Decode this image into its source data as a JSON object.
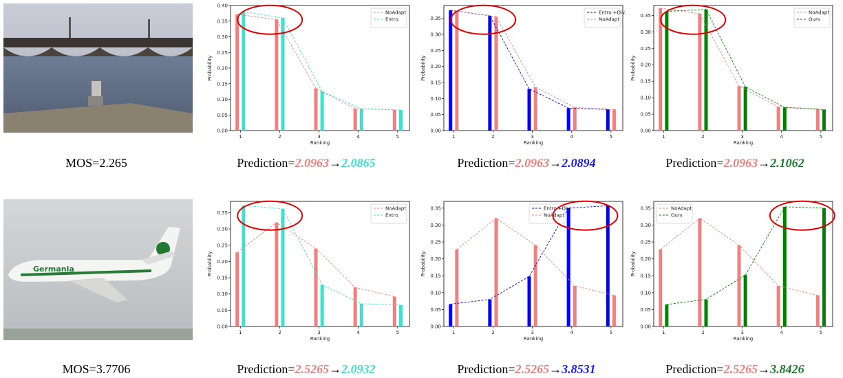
{
  "images": [
    {
      "caption": "MOS=2.265"
    },
    {
      "caption": "MOS=3.7706",
      "text": "Germania"
    }
  ],
  "chart_data": [
    {
      "type": "bar",
      "x_label": "Ranking",
      "y_label": "Probability",
      "x": [
        1,
        2,
        3,
        4,
        5
      ],
      "xlim": [
        0.75,
        5.3
      ],
      "xticks": [
        1,
        2,
        3,
        4,
        5
      ],
      "ylim": [
        0,
        0.4
      ],
      "yticks": [
        {
          "value": 0,
          "label": "0.00"
        },
        {
          "value": 0.05,
          "label": "0.05"
        },
        {
          "value": 0.1,
          "label": "0.10"
        },
        {
          "value": 0.15,
          "label": "0.15"
        },
        {
          "value": 0.2,
          "label": "0.20"
        },
        {
          "value": 0.25,
          "label": "0.25"
        },
        {
          "value": 0.3,
          "label": "0.30"
        },
        {
          "value": 0.35,
          "label": "0.35"
        },
        {
          "value": 0.4,
          "label": "0.40"
        }
      ],
      "legend_loc": "upper right",
      "series": [
        {
          "name": "NoAdapt",
          "color": "#f08080",
          "values": [
            0.372,
            0.355,
            0.135,
            0.07,
            0.066
          ]
        },
        {
          "name": "Entro.",
          "color": "#40e0d0",
          "values": [
            0.38,
            0.36,
            0.125,
            0.07,
            0.066
          ]
        }
      ],
      "caption": {
        "prefix": "Prediction=",
        "before": "2.0963",
        "arrow": "→",
        "after": "2.0865",
        "before_color": "#f08080",
        "after_color": "#40e0d0"
      }
    },
    {
      "type": "bar",
      "x_label": "Ranking",
      "y_label": "Probability",
      "x": [
        1,
        2,
        3,
        4,
        5
      ],
      "xlim": [
        0.75,
        5.3
      ],
      "xticks": [
        1,
        2,
        3,
        4,
        5
      ],
      "ylim": [
        0,
        0.39
      ],
      "yticks": [
        {
          "value": 0,
          "label": "0.00"
        },
        {
          "value": 0.05,
          "label": "0.05"
        },
        {
          "value": 0.1,
          "label": "0.10"
        },
        {
          "value": 0.15,
          "label": "0.15"
        },
        {
          "value": 0.2,
          "label": "0.20"
        },
        {
          "value": 0.25,
          "label": "0.25"
        },
        {
          "value": 0.3,
          "label": "0.30"
        },
        {
          "value": 0.35,
          "label": "0.35"
        }
      ],
      "legend_loc": "upper right",
      "series": [
        {
          "name": "Entro.+Div.",
          "color": "#0000ff",
          "values": [
            0.375,
            0.358,
            0.13,
            0.07,
            0.066
          ]
        },
        {
          "name": "NoAdapt",
          "color": "#f08080",
          "values": [
            0.372,
            0.355,
            0.135,
            0.072,
            0.066
          ]
        }
      ],
      "caption": {
        "prefix": "Prediction=",
        "before": "2.0963",
        "arrow": "→",
        "after": "2.0894",
        "before_color": "#f08080",
        "after_color": "#1a1aff"
      }
    },
    {
      "type": "bar",
      "x_label": "Ranking",
      "y_label": "Probability",
      "x": [
        1,
        2,
        3,
        4,
        5
      ],
      "xlim": [
        0.75,
        5.3
      ],
      "xticks": [
        1,
        2,
        3,
        4,
        5
      ],
      "ylim": [
        0,
        0.38
      ],
      "yticks": [
        {
          "value": 0,
          "label": "0.00"
        },
        {
          "value": 0.05,
          "label": "0.05"
        },
        {
          "value": 0.1,
          "label": "0.10"
        },
        {
          "value": 0.15,
          "label": "0.15"
        },
        {
          "value": 0.2,
          "label": "0.20"
        },
        {
          "value": 0.25,
          "label": "0.25"
        },
        {
          "value": 0.3,
          "label": "0.30"
        },
        {
          "value": 0.35,
          "label": "0.35"
        }
      ],
      "legend_loc": "upper right",
      "series": [
        {
          "name": "NoAdapt",
          "color": "#f08080",
          "values": [
            0.372,
            0.355,
            0.135,
            0.072,
            0.066
          ]
        },
        {
          "name": "Ours",
          "color": "#008000",
          "values": [
            0.362,
            0.368,
            0.133,
            0.07,
            0.064
          ]
        }
      ],
      "caption": {
        "prefix": "Prediction=",
        "before": "2.0963",
        "arrow": "→",
        "after": "2.1062",
        "before_color": "#f08080",
        "after_color": "#1e7b32"
      }
    },
    {
      "type": "bar",
      "x_label": "Ranking",
      "y_label": "Probability",
      "x": [
        1,
        2,
        3,
        4,
        5
      ],
      "xlim": [
        0.75,
        5.3
      ],
      "xticks": [
        1,
        2,
        3,
        4,
        5
      ],
      "ylim": [
        0,
        0.385
      ],
      "yticks": [
        {
          "value": 0,
          "label": "0.00"
        },
        {
          "value": 0.05,
          "label": "0.05"
        },
        {
          "value": 0.1,
          "label": "0.10"
        },
        {
          "value": 0.15,
          "label": "0.15"
        },
        {
          "value": 0.2,
          "label": "0.20"
        },
        {
          "value": 0.25,
          "label": "0.25"
        },
        {
          "value": 0.3,
          "label": "0.30"
        },
        {
          "value": 0.35,
          "label": "0.35"
        }
      ],
      "legend_loc": "upper right",
      "series": [
        {
          "name": "NoAdapt",
          "color": "#f08080",
          "values": [
            0.228,
            0.32,
            0.24,
            0.12,
            0.092
          ]
        },
        {
          "name": "Entro",
          "color": "#40e0d0",
          "values": [
            0.372,
            0.362,
            0.128,
            0.07,
            0.066
          ]
        }
      ],
      "caption": {
        "prefix": "Prediction=",
        "before": "2.5265",
        "arrow": "→",
        "after": "2.0932",
        "before_color": "#f08080",
        "after_color": "#40e0d0"
      }
    },
    {
      "type": "bar",
      "x_label": "Ranking",
      "y_label": "Probability",
      "x": [
        1,
        2,
        3,
        4,
        5
      ],
      "xlim": [
        0.75,
        5.3
      ],
      "xticks": [
        1,
        2,
        3,
        4,
        5
      ],
      "ylim": [
        0,
        0.37
      ],
      "yticks": [
        {
          "value": 0,
          "label": "0.00"
        },
        {
          "value": 0.05,
          "label": "0.05"
        },
        {
          "value": 0.1,
          "label": "0.10"
        },
        {
          "value": 0.15,
          "label": "0.15"
        },
        {
          "value": 0.2,
          "label": "0.20"
        },
        {
          "value": 0.25,
          "label": "0.25"
        },
        {
          "value": 0.3,
          "label": "0.30"
        },
        {
          "value": 0.35,
          "label": "0.35"
        }
      ],
      "legend_loc": "upper center",
      "series": [
        {
          "name": "Entro.+Div.",
          "color": "#0000ff",
          "values": [
            0.066,
            0.08,
            0.148,
            0.35,
            0.357
          ]
        },
        {
          "name": "NoAdapt",
          "color": "#f08080",
          "values": [
            0.228,
            0.32,
            0.24,
            0.12,
            0.092
          ]
        }
      ],
      "caption": {
        "prefix": "Prediction=",
        "before": "2.5265",
        "arrow": "→",
        "after": "3.8531",
        "before_color": "#f08080",
        "after_color": "#1a1aff"
      }
    },
    {
      "type": "bar",
      "x_label": "Ranking",
      "y_label": "Probability",
      "x": [
        1,
        2,
        3,
        4,
        5
      ],
      "xlim": [
        0.75,
        5.3
      ],
      "xticks": [
        1,
        2,
        3,
        4,
        5
      ],
      "ylim": [
        0,
        0.37
      ],
      "yticks": [
        {
          "value": 0,
          "label": "0.00"
        },
        {
          "value": 0.05,
          "label": "0.05"
        },
        {
          "value": 0.1,
          "label": "0.10"
        },
        {
          "value": 0.15,
          "label": "0.15"
        },
        {
          "value": 0.2,
          "label": "0.20"
        },
        {
          "value": 0.25,
          "label": "0.25"
        },
        {
          "value": 0.3,
          "label": "0.30"
        },
        {
          "value": 0.35,
          "label": "0.35"
        }
      ],
      "legend_loc": "upper left",
      "series": [
        {
          "name": "NoAdapt",
          "color": "#f08080",
          "values": [
            0.228,
            0.32,
            0.24,
            0.12,
            0.092
          ]
        },
        {
          "name": "Ours",
          "color": "#008000",
          "values": [
            0.065,
            0.08,
            0.152,
            0.354,
            0.35
          ]
        }
      ],
      "caption": {
        "prefix": "Prediction=",
        "before": "2.5265",
        "arrow": "→",
        "after": "3.8426",
        "before_color": "#f08080",
        "after_color": "#1e7b32"
      }
    }
  ]
}
